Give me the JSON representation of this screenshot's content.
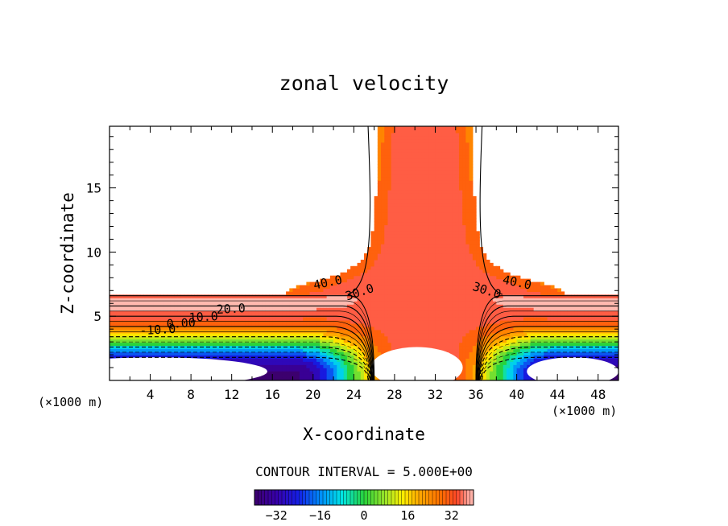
{
  "chart_data": {
    "type": "heatmap",
    "title": "zonal velocity",
    "xlabel": "X-coordinate",
    "ylabel": "Z-coordinate",
    "x_unit": "(×1000 m)",
    "x_ticks": [
      "4",
      "8",
      "12",
      "16",
      "20",
      "24",
      "28",
      "32",
      "36",
      "40",
      "44",
      "48"
    ],
    "y_ticks": [
      "5",
      "10",
      "15"
    ],
    "xlim": [
      0,
      50
    ],
    "ylim": [
      0,
      19.8
    ],
    "contour_interval_text": "CONTOUR INTERVAL = 5.000E+00",
    "contour_interval": 5.0,
    "contour_labels": [
      "40.0",
      "30.0",
      "20.0",
      "10.0",
      "0.00",
      "-10.0",
      "40.0",
      "30.0"
    ],
    "colorbar": {
      "range": [
        -40,
        40
      ],
      "ticks": [
        "−32",
        "−16",
        "0",
        "16",
        "32"
      ]
    },
    "grid": false,
    "colors": {
      "neg_max": "#3a0070",
      "neg": "#1030e0",
      "zero": "#30d040",
      "pos": "#ff4020",
      "pos_max": "#ffb0a0"
    }
  }
}
